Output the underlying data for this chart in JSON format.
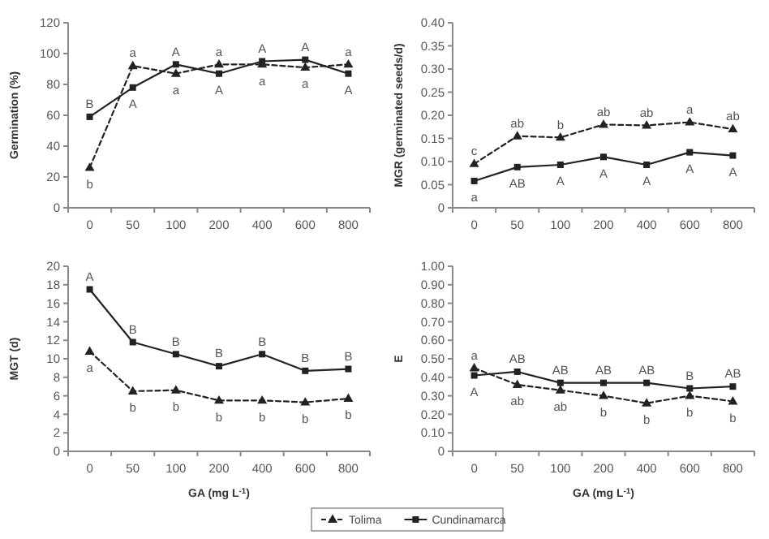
{
  "chart_data": [
    {
      "type": "line",
      "ylabel": "Germination (%)",
      "categories": [
        "0",
        "50",
        "100",
        "200",
        "400",
        "600",
        "800"
      ],
      "ylim": [
        0,
        120
      ],
      "yticks": [
        0,
        20,
        40,
        60,
        80,
        100,
        120
      ],
      "legend": "bottom",
      "series": [
        {
          "name": "Tolima",
          "color": "#222222",
          "marker": "triangle",
          "line_style": "dashed",
          "values": [
            26,
            92,
            87,
            93,
            93,
            91,
            93
          ]
        },
        {
          "name": "Cundinamarca",
          "color": "#222222",
          "marker": "square",
          "line_style": "solid",
          "values": [
            59,
            78,
            93,
            87,
            95,
            96,
            87
          ]
        }
      ],
      "annotations": [
        {
          "text": "b",
          "x": "0",
          "y": 26
        },
        {
          "text": "B",
          "x": "0",
          "y": 59
        },
        {
          "text": "a",
          "x": "50",
          "y": 92
        },
        {
          "text": "A",
          "x": "50",
          "y": 78
        },
        {
          "text": "A",
          "x": "100",
          "y": 93
        },
        {
          "text": "a",
          "x": "100",
          "y": 87
        },
        {
          "text": "a",
          "x": "200",
          "y": 93
        },
        {
          "text": "A",
          "x": "200",
          "y": 87
        },
        {
          "text": "A",
          "x": "400",
          "y": 95
        },
        {
          "text": "a",
          "x": "400",
          "y": 93
        },
        {
          "text": "A",
          "x": "600",
          "y": 96
        },
        {
          "text": "a",
          "x": "600",
          "y": 91
        },
        {
          "text": "a",
          "x": "800",
          "y": 93
        },
        {
          "text": "A",
          "x": "800",
          "y": 87
        }
      ]
    },
    {
      "type": "line",
      "ylabel": "MGR (germinated seeds/d)",
      "categories": [
        "0",
        "50",
        "100",
        "200",
        "400",
        "600",
        "800"
      ],
      "ylim": [
        0,
        0.4
      ],
      "yticks": [
        0,
        0.05,
        {
          "value": 0.1,
          "label": "0.10"
        },
        0.15,
        {
          "value": 0.2,
          "label": "0.20"
        },
        0.25,
        {
          "value": 0.3,
          "label": "0.30"
        },
        0.35,
        {
          "value": 0.4,
          "label": "0.40"
        }
      ],
      "series": [
        {
          "color": "#222222",
          "marker": "triangle",
          "line_style": "dashed",
          "values": [
            0.095,
            0.155,
            0.152,
            0.18,
            0.178,
            0.185,
            0.17
          ]
        },
        {
          "color": "#222222",
          "marker": "square",
          "line_style": "solid",
          "values": [
            0.058,
            0.088,
            0.093,
            0.11,
            0.093,
            0.12,
            0.113
          ]
        }
      ],
      "annotations": [
        {
          "text": "c",
          "x": "0",
          "y": 0.095
        },
        {
          "text": "a",
          "x": "0",
          "y": 0.058
        },
        {
          "text": "ab",
          "x": "50",
          "y": 0.155
        },
        {
          "text": "AB",
          "x": "50",
          "y": 0.088
        },
        {
          "text": "b",
          "x": "100",
          "y": 0.152
        },
        {
          "text": "A",
          "x": "100",
          "y": 0.093
        },
        {
          "text": "ab",
          "x": "200",
          "y": 0.18
        },
        {
          "text": "A",
          "x": "200",
          "y": 0.11
        },
        {
          "text": "ab",
          "x": "400",
          "y": 0.178
        },
        {
          "text": "A",
          "x": "400",
          "y": 0.093
        },
        {
          "text": "a",
          "x": "600",
          "y": 0.185
        },
        {
          "text": "A",
          "x": "600",
          "y": 0.12
        },
        {
          "text": "ab",
          "x": "800",
          "y": 0.17
        },
        {
          "text": "A",
          "x": "800",
          "y": 0.113
        }
      ]
    },
    {
      "type": "line",
      "ylabel": "MGT (d)",
      "xlabel": "GA (mg L$^{-1}$)",
      "categories": [
        "0",
        "50",
        "100",
        "200",
        "400",
        "600",
        "800"
      ],
      "ylim": [
        0,
        20
      ],
      "yticks": [
        0,
        2,
        4,
        6,
        8,
        10,
        12,
        14,
        16,
        18,
        20
      ],
      "series": [
        {
          "color": "#222222",
          "marker": "triangle",
          "line_style": "dashed",
          "values": [
            10.8,
            6.5,
            6.6,
            5.5,
            5.5,
            5.3,
            5.7
          ]
        },
        {
          "color": "#222222",
          "marker": "square",
          "line_style": "solid",
          "values": [
            17.5,
            11.8,
            10.5,
            9.2,
            10.5,
            8.7,
            8.9
          ]
        }
      ],
      "annotations": [
        {
          "text": "A",
          "x": "0",
          "y": 17.5
        },
        {
          "text": "a",
          "x": "0",
          "y": 10.8
        },
        {
          "text": "B",
          "x": "50",
          "y": 11.8
        },
        {
          "text": "b",
          "x": "50",
          "y": 6.5
        },
        {
          "text": "B",
          "x": "100",
          "y": 10.5
        },
        {
          "text": "b",
          "x": "100",
          "y": 6.6
        },
        {
          "text": "B",
          "x": "200",
          "y": 9.2
        },
        {
          "text": "b",
          "x": "200",
          "y": 5.5
        },
        {
          "text": "B",
          "x": "400",
          "y": 10.5
        },
        {
          "text": "b",
          "x": "400",
          "y": 5.5
        },
        {
          "text": "B",
          "x": "600",
          "y": 8.7
        },
        {
          "text": "b",
          "x": "600",
          "y": 5.3
        },
        {
          "text": "B",
          "x": "800",
          "y": 8.9
        },
        {
          "text": "b",
          "x": "800",
          "y": 5.7
        }
      ]
    },
    {
      "type": "line",
      "ylabel": "E",
      "xlabel": "GA (mg L$^{-1}$)",
      "categories": [
        "0",
        "50",
        "100",
        "200",
        "400",
        "600",
        "800"
      ],
      "ylim": [
        0,
        1
      ],
      "yticks": [
        0,
        {
          "value": 0.1,
          "label": "0.10"
        },
        {
          "value": 0.2,
          "label": "0.20"
        },
        {
          "value": 0.3,
          "label": "0.30"
        },
        {
          "value": 0.4,
          "label": "0.40"
        },
        {
          "value": 0.5,
          "label": "0.50"
        },
        {
          "value": 0.6,
          "label": "0.60"
        },
        {
          "value": 0.7,
          "label": "0.70"
        },
        {
          "value": 0.8,
          "label": "0.80"
        },
        {
          "value": 0.9,
          "label": "0.90"
        },
        {
          "value": 1,
          "label": "1.00"
        }
      ],
      "series": [
        {
          "color": "#222222",
          "marker": "triangle",
          "line_style": "dashed",
          "values": [
            0.45,
            0.36,
            0.33,
            0.3,
            0.26,
            0.3,
            0.27
          ]
        },
        {
          "color": "#222222",
          "marker": "square",
          "line_style": "solid",
          "values": [
            0.41,
            0.43,
            0.37,
            0.37,
            0.37,
            0.34,
            0.35
          ]
        }
      ],
      "annotations": [
        {
          "text": "a",
          "x": "0",
          "y": 0.45
        },
        {
          "text": "A",
          "x": "0",
          "y": 0.41
        },
        {
          "text": "AB",
          "x": "50",
          "y": 0.43
        },
        {
          "text": "ab",
          "x": "50",
          "y": 0.36
        },
        {
          "text": "AB",
          "x": "100",
          "y": 0.37
        },
        {
          "text": "ab",
          "x": "100",
          "y": 0.33
        },
        {
          "text": "AB",
          "x": "200",
          "y": 0.37
        },
        {
          "text": "b",
          "x": "200",
          "y": 0.3
        },
        {
          "text": "AB",
          "x": "400",
          "y": 0.37
        },
        {
          "text": "b",
          "x": "400",
          "y": 0.26
        },
        {
          "text": "B",
          "x": "600",
          "y": 0.34
        },
        {
          "text": "b",
          "x": "600",
          "y": 0.3
        },
        {
          "text": "AB",
          "x": "800",
          "y": 0.35
        },
        {
          "text": "b",
          "x": "800",
          "y": 0.27
        }
      ]
    }
  ]
}
